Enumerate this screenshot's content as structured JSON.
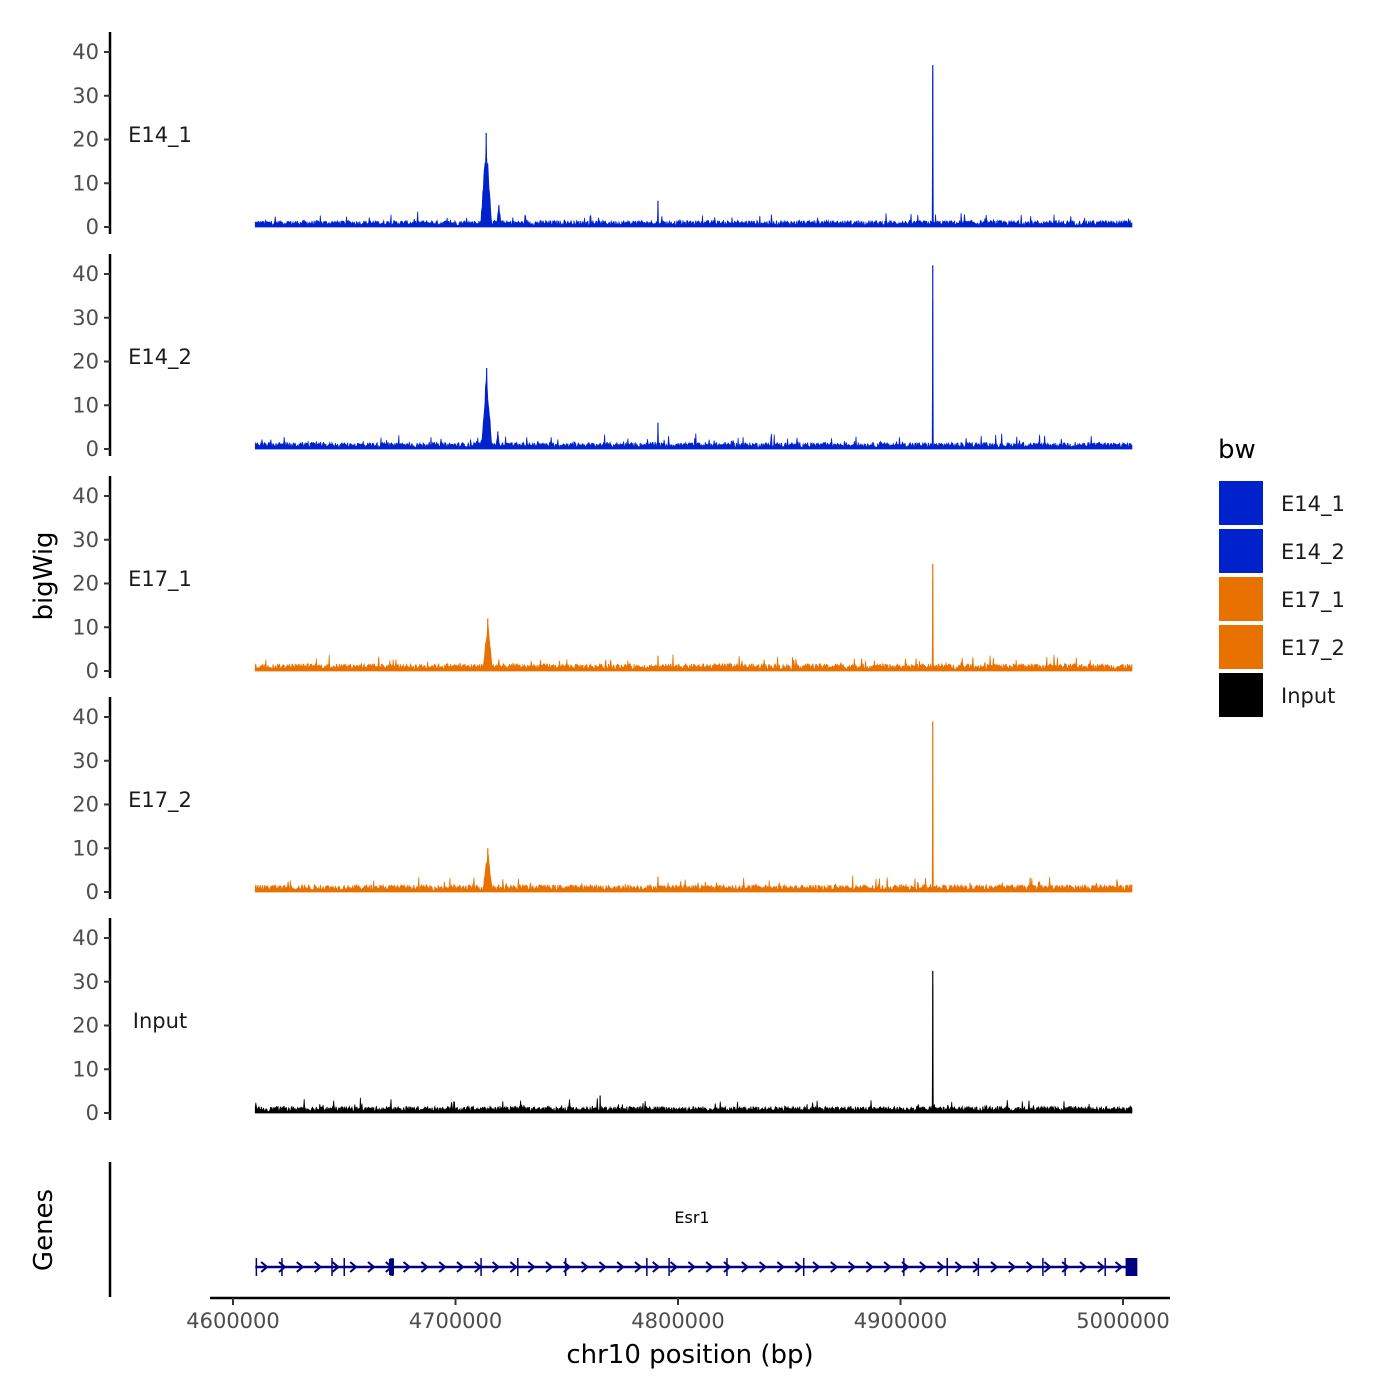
{
  "chart_data": {
    "type": "area",
    "description_title": "",
    "ylabel": "bigWig",
    "xlabel": "chr10 position (bp)",
    "xlim": [
      4600000,
      5000000
    ],
    "x_data_range": [
      4610000,
      5004000
    ],
    "x_ticks": [
      4600000,
      4700000,
      4800000,
      4900000,
      5000000
    ],
    "x_tick_labels": [
      "4600000",
      "4700000",
      "4800000",
      "4900000",
      "5000000"
    ],
    "ylim": [
      0,
      44
    ],
    "y_ticks": [
      0,
      10,
      20,
      30,
      40
    ],
    "y_tick_labels": [
      "0",
      "10",
      "20",
      "30",
      "40"
    ],
    "legend_title": "bw",
    "legend_position": "right",
    "series": [
      {
        "name": "E14_1",
        "color": "#0022CC",
        "baseline": 1.0,
        "peaks": [
          {
            "x": 4713800,
            "y": 21.5,
            "width": 2500
          },
          {
            "x": 4719500,
            "y": 5.0,
            "width": 1200
          },
          {
            "x": 4791000,
            "y": 6.0,
            "width": 250
          },
          {
            "x": 4914500,
            "y": 37.0,
            "width": 150
          }
        ]
      },
      {
        "name": "E14_2",
        "color": "#0022CC",
        "baseline": 1.0,
        "peaks": [
          {
            "x": 4714000,
            "y": 18.5,
            "width": 2400
          },
          {
            "x": 4719000,
            "y": 4.0,
            "width": 1000
          },
          {
            "x": 4791000,
            "y": 6.0,
            "width": 250
          },
          {
            "x": 4914500,
            "y": 42.0,
            "width": 150
          }
        ]
      },
      {
        "name": "E17_1",
        "color": "#E87100",
        "baseline": 1.1,
        "peaks": [
          {
            "x": 4714500,
            "y": 12.0,
            "width": 2200
          },
          {
            "x": 4791000,
            "y": 3.5,
            "width": 300
          },
          {
            "x": 4914500,
            "y": 24.5,
            "width": 150
          }
        ]
      },
      {
        "name": "E17_2",
        "color": "#E87100",
        "baseline": 1.1,
        "peaks": [
          {
            "x": 4714500,
            "y": 10.0,
            "width": 2200
          },
          {
            "x": 4791000,
            "y": 3.5,
            "width": 300
          },
          {
            "x": 4914500,
            "y": 39.0,
            "width": 150
          }
        ]
      },
      {
        "name": "Input",
        "color": "#000000",
        "baseline": 1.0,
        "peaks": [
          {
            "x": 4765000,
            "y": 4.0,
            "width": 300
          },
          {
            "x": 4914500,
            "y": 32.5,
            "width": 150
          }
        ]
      }
    ],
    "genes_track": {
      "label": "Genes",
      "genes": [
        {
          "name": "Esr1",
          "start": 4610000,
          "end": 5004000,
          "strand": "+",
          "color": "#000080",
          "exons": [
            4610500,
            4622000,
            4644500,
            4650000,
            4671000,
            4671800,
            4711500,
            4728000,
            4749500,
            4786000,
            4796000,
            4822000,
            4856500,
            4901500,
            4921000,
            4935000,
            4964000,
            4974000,
            4992000,
            5001500,
            5002500,
            5003500
          ]
        }
      ]
    }
  }
}
